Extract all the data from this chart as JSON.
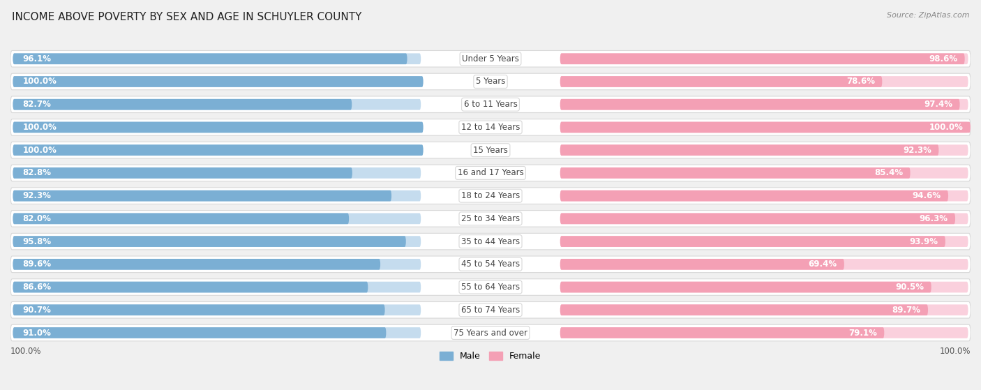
{
  "title": "INCOME ABOVE POVERTY BY SEX AND AGE IN SCHUYLER COUNTY",
  "source": "Source: ZipAtlas.com",
  "categories": [
    "Under 5 Years",
    "5 Years",
    "6 to 11 Years",
    "12 to 14 Years",
    "15 Years",
    "16 and 17 Years",
    "18 to 24 Years",
    "25 to 34 Years",
    "35 to 44 Years",
    "45 to 54 Years",
    "55 to 64 Years",
    "65 to 74 Years",
    "75 Years and over"
  ],
  "male_values": [
    96.1,
    100.0,
    82.7,
    100.0,
    100.0,
    82.8,
    92.3,
    82.0,
    95.8,
    89.6,
    86.6,
    90.7,
    91.0
  ],
  "female_values": [
    98.6,
    78.6,
    97.4,
    100.0,
    92.3,
    85.4,
    94.6,
    96.3,
    93.9,
    69.4,
    90.5,
    89.7,
    79.1
  ],
  "male_color": "#7bafd4",
  "female_color": "#f4a0b5",
  "male_color_light": "#c5dcee",
  "female_color_light": "#fad0dd",
  "male_label": "Male",
  "female_label": "Female",
  "background_color": "#f0f0f0",
  "row_bg_color": "#ffffff",
  "row_border_color": "#d8d8d8",
  "value_fontsize": 8.5,
  "category_fontsize": 8.5,
  "title_fontsize": 11,
  "source_fontsize": 8,
  "legend_fontsize": 9,
  "axis_label": "100.0%"
}
